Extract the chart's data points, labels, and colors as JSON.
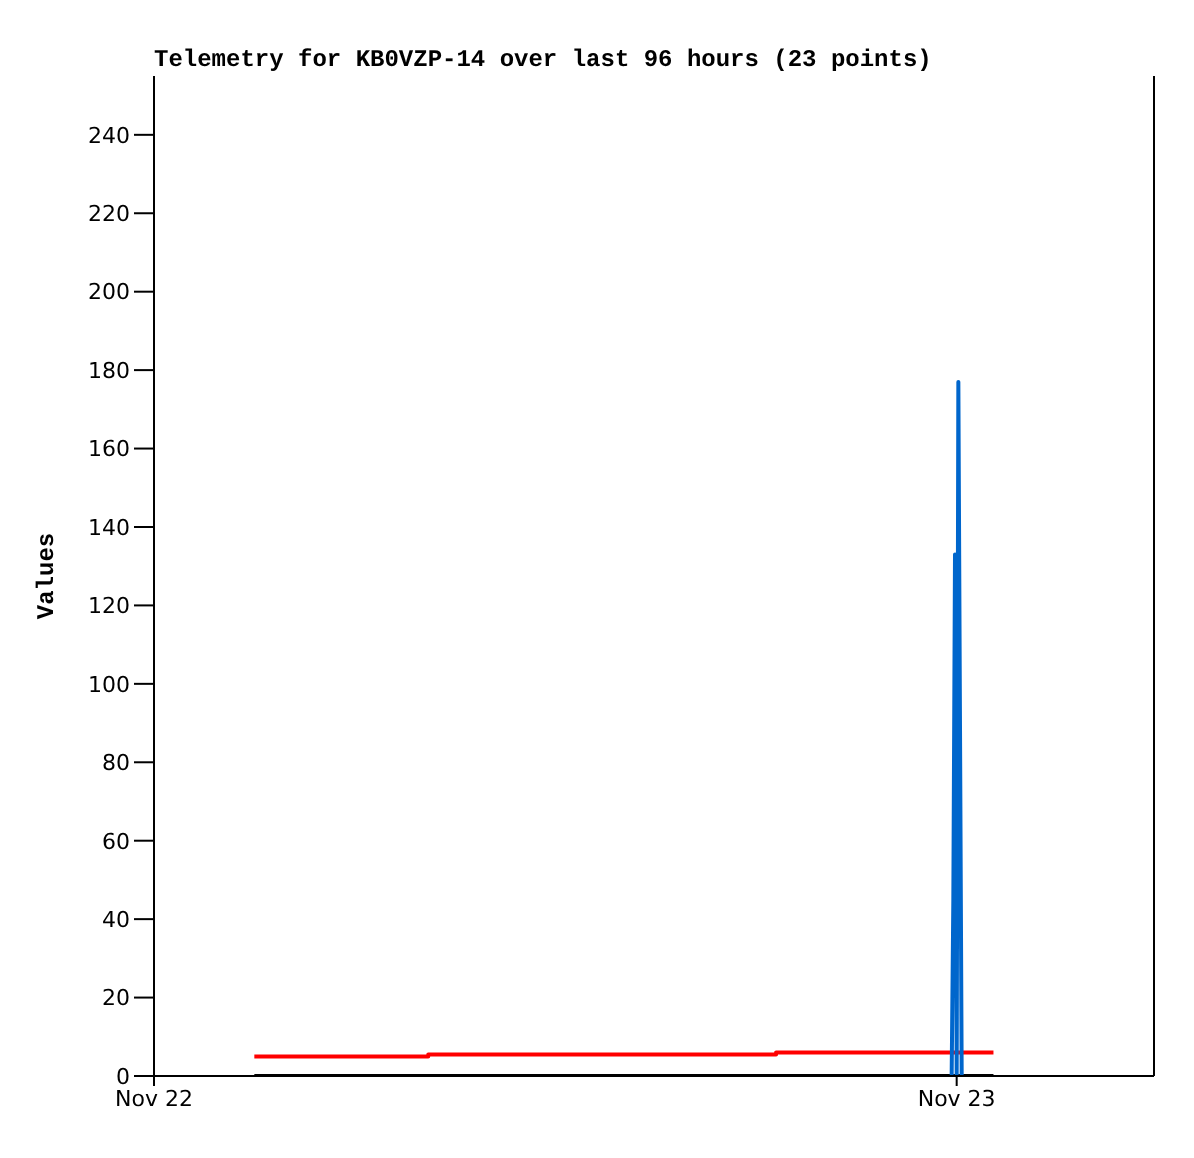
{
  "chart_data": {
    "type": "line",
    "title": "Telemetry for KB0VZP-14 over last 96 hours (23 points)",
    "ylabel": "Values",
    "xlim": [
      "--11-22T00:00",
      "--11-23T05:54"
    ],
    "xticks": [
      {
        "value": "--11-22",
        "label": "Nov 22"
      },
      {
        "value": "--11-23",
        "label": "Nov 23"
      }
    ],
    "ylim": [
      0,
      255
    ],
    "yticks": [
      0,
      20,
      40,
      60,
      80,
      100,
      120,
      140,
      160,
      180,
      200,
      220,
      240
    ],
    "grid": false,
    "marker": "none",
    "series": [
      {
        "type": "step",
        "color": "#ff0000",
        "x": [
          "--11-22T03:00",
          "--11-22T08:12",
          "--11-22T18:36",
          "--11-23T01:06"
        ],
        "values": [
          5,
          5.5,
          6,
          6
        ]
      },
      {
        "color": "#000000",
        "x": [
          "--11-22T03:00",
          "--11-23T01:06"
        ],
        "values": [
          0,
          0
        ]
      },
      {
        "color": "#0066cc",
        "x": [
          "--11-22T23:51",
          "--11-22T23:54",
          "--11-22T23:57",
          "--11-23T00:00",
          "--11-23T00:03",
          "--11-23T00:06",
          "--11-23T00:09"
        ],
        "values": [
          0,
          45,
          133,
          0,
          177,
          88,
          0
        ]
      }
    ]
  }
}
